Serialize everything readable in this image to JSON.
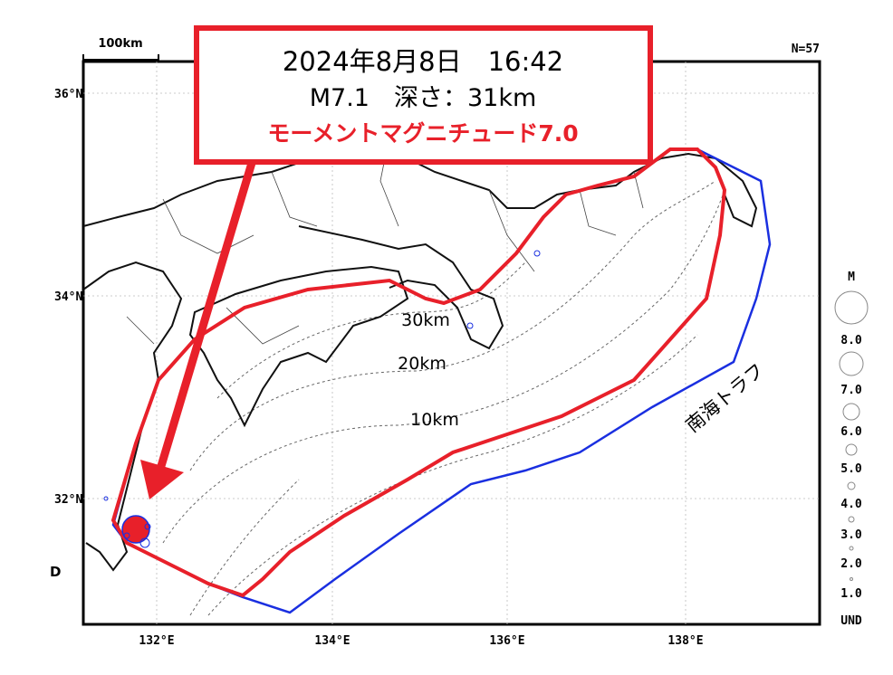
{
  "map": {
    "scale_label": "100km",
    "count_label": "N=57",
    "panel_label": "D",
    "lat_labels": [
      "36°N",
      "34°N",
      "32°N"
    ],
    "lon_labels": [
      "132°E",
      "134°E",
      "136°E",
      "138°E"
    ],
    "depth_labels": [
      "30km",
      "20km",
      "10km"
    ],
    "trough_label": "南海トラフ"
  },
  "legend": {
    "title": "M",
    "labels": [
      "8.0",
      "7.0",
      "6.0",
      "5.0",
      "4.0",
      "3.0",
      "2.0",
      "1.0",
      "UND"
    ]
  },
  "callout": {
    "line1": "2024年8月8日　16:42",
    "line2": "M7.1　深さ：31km",
    "line3": "モーメントマグニチュード7.0"
  }
}
